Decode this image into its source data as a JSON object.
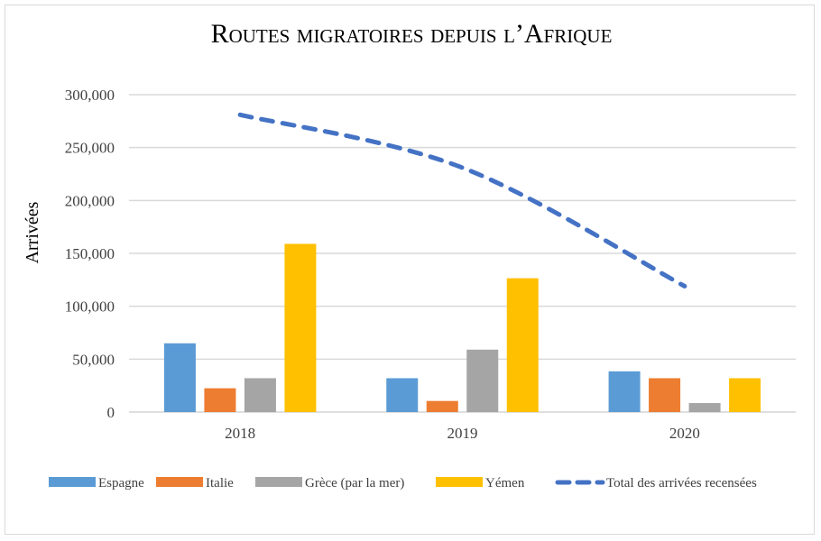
{
  "chart_data": {
    "type": "bar",
    "title": "Routes migratoires depuis l’Afrique",
    "xlabel": "",
    "ylabel": "Arrivées",
    "ylim": [
      0,
      300000
    ],
    "yticks": [
      "0",
      "50,000",
      "100,000",
      "150,000",
      "200,000",
      "250,000",
      "300,000"
    ],
    "categories": [
      "2018",
      "2019",
      "2020"
    ],
    "series": [
      {
        "name": "Espagne",
        "type": "bar",
        "color": "#5b9bd5",
        "values": [
          65000,
          32000,
          38500
        ]
      },
      {
        "name": "Italie",
        "type": "bar",
        "color": "#ed7d31",
        "values": [
          22500,
          10500,
          32000
        ]
      },
      {
        "name": "Grèce (par la mer)",
        "type": "bar",
        "color": "#a5a5a5",
        "values": [
          32000,
          59000,
          8500
        ]
      },
      {
        "name": "Yémen",
        "type": "bar",
        "color": "#ffc000",
        "values": [
          159000,
          126500,
          32000
        ]
      },
      {
        "name": "Total des arrivées recensées",
        "type": "line",
        "style": "dashed",
        "color": "#4472c4",
        "values": [
          281000,
          231000,
          119000
        ]
      }
    ],
    "grid": true,
    "legend": "bottom"
  }
}
